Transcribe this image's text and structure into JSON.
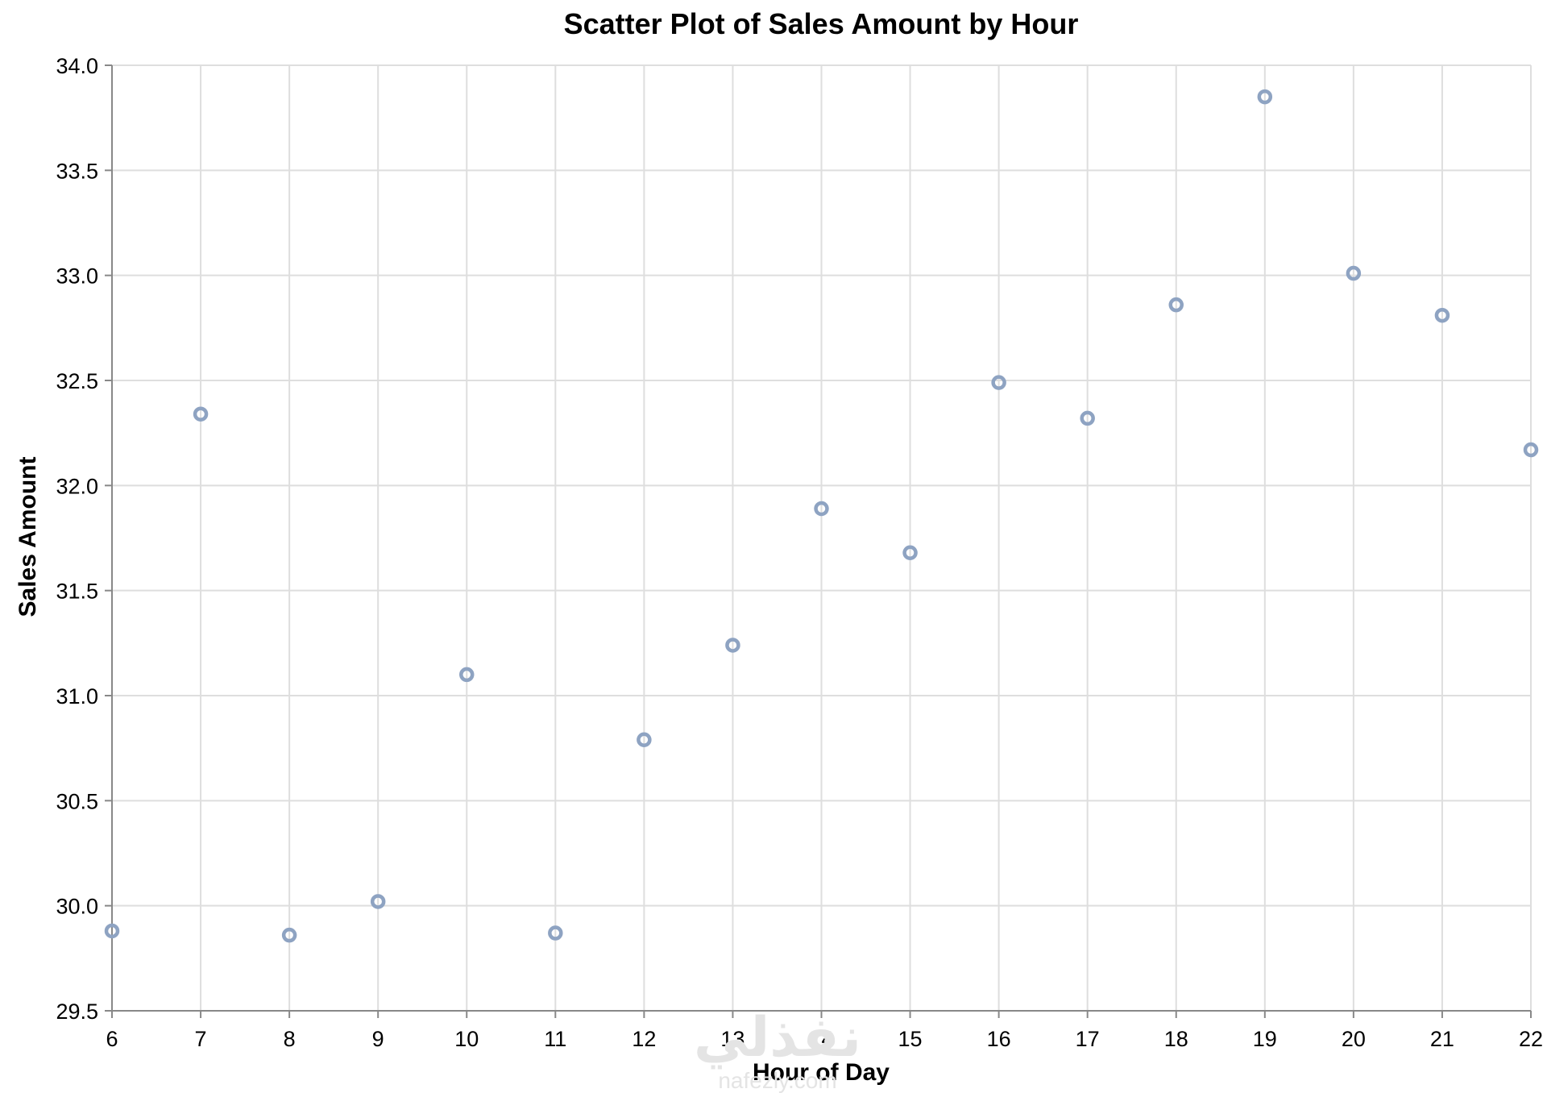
{
  "chart_data": {
    "type": "scatter",
    "title": "Scatter Plot of Sales Amount by Hour",
    "xlabel": "Hour of Day",
    "ylabel": "Sales Amount",
    "xlim": [
      6,
      22
    ],
    "ylim": [
      29.5,
      34.0
    ],
    "x_ticks": [
      "6",
      "7",
      "8",
      "9",
      "10",
      "11",
      "12",
      "13",
      "14",
      "15",
      "16",
      "17",
      "18",
      "19",
      "20",
      "21",
      "22"
    ],
    "y_ticks": [
      "29.5",
      "30.0",
      "30.5",
      "31.0",
      "31.5",
      "32.0",
      "32.5",
      "33.0",
      "33.5",
      "34.0"
    ],
    "grid": true,
    "point_color": "#8ea3c2",
    "points": [
      {
        "x": 6,
        "y": 29.88
      },
      {
        "x": 7,
        "y": 32.34
      },
      {
        "x": 8,
        "y": 29.86
      },
      {
        "x": 9,
        "y": 30.02
      },
      {
        "x": 10,
        "y": 31.1
      },
      {
        "x": 11,
        "y": 29.87
      },
      {
        "x": 12,
        "y": 30.79
      },
      {
        "x": 13,
        "y": 31.24
      },
      {
        "x": 14,
        "y": 31.89
      },
      {
        "x": 15,
        "y": 31.68
      },
      {
        "x": 16,
        "y": 32.49
      },
      {
        "x": 17,
        "y": 32.32
      },
      {
        "x": 18,
        "y": 32.86
      },
      {
        "x": 19,
        "y": 33.85
      },
      {
        "x": 20,
        "y": 33.01
      },
      {
        "x": 21,
        "y": 32.81
      },
      {
        "x": 22,
        "y": 32.17
      }
    ]
  },
  "watermark": {
    "text": "نفذلي",
    "subtext": "nafezly.com"
  }
}
